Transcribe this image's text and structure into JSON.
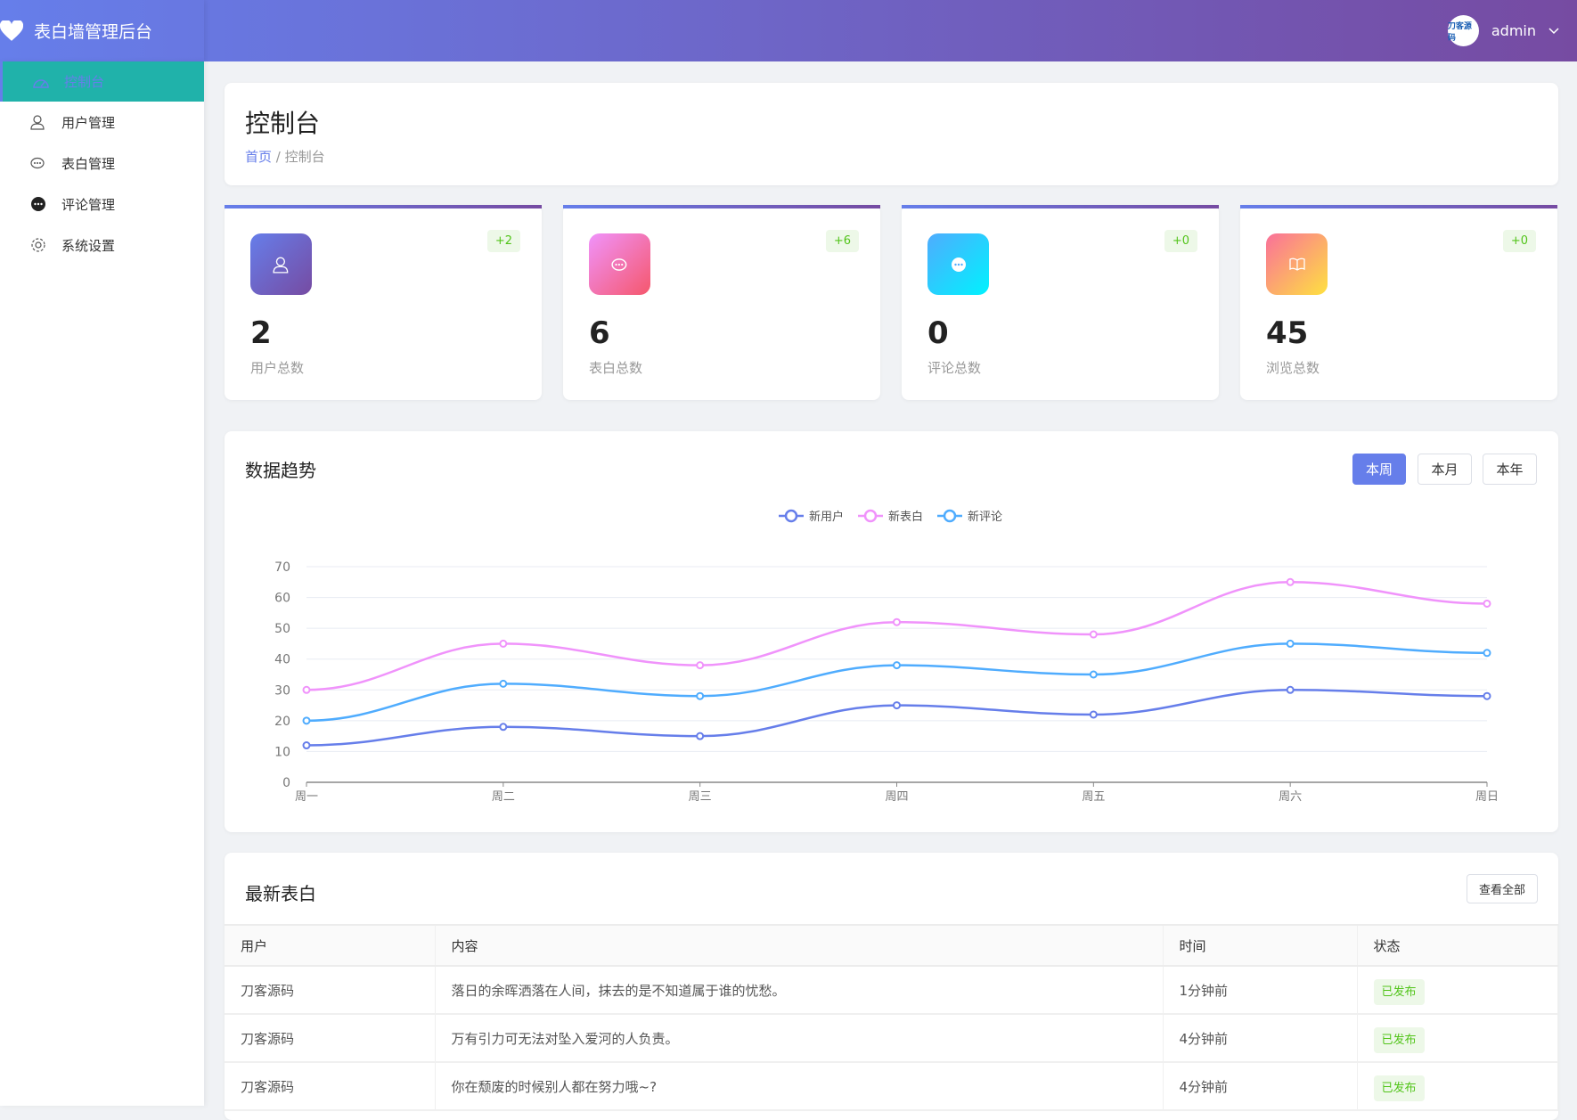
{
  "header": {
    "app_title": "表白墙管理后台",
    "username": "admin",
    "avatar_text": "刀客源码"
  },
  "sidebar": {
    "items": [
      {
        "label": "控制台",
        "icon": "dashboard-icon",
        "active": true
      },
      {
        "label": "用户管理",
        "icon": "user-icon"
      },
      {
        "label": "表白管理",
        "icon": "chat-bubbles-icon"
      },
      {
        "label": "评论管理",
        "icon": "comment-icon"
      },
      {
        "label": "系统设置",
        "icon": "gear-icon"
      }
    ]
  },
  "page": {
    "title": "控制台",
    "breadcrumb_home": "首页",
    "breadcrumb_sep": "/",
    "breadcrumb_current": "控制台"
  },
  "stats": [
    {
      "value": "2",
      "label": "用户总数",
      "delta": "+2",
      "icon": "user-icon"
    },
    {
      "value": "6",
      "label": "表白总数",
      "delta": "+6",
      "icon": "chat-bubbles-icon"
    },
    {
      "value": "0",
      "label": "评论总数",
      "delta": "+0",
      "icon": "comment-icon"
    },
    {
      "value": "45",
      "label": "浏览总数",
      "delta": "+0",
      "icon": "book-icon"
    }
  ],
  "trend": {
    "title": "数据趋势",
    "buttons": [
      "本周",
      "本月",
      "本年"
    ],
    "active_button": "本周"
  },
  "chart_data": {
    "type": "line",
    "smooth": true,
    "categories": [
      "周一",
      "周二",
      "周三",
      "周四",
      "周五",
      "周六",
      "周日"
    ],
    "ylim": [
      0,
      70
    ],
    "yticks": [
      0,
      10,
      20,
      30,
      40,
      50,
      60,
      70
    ],
    "grid": true,
    "legend": "top-center",
    "series": [
      {
        "name": "新用户",
        "color": "#667eea",
        "values": [
          12,
          18,
          15,
          25,
          22,
          30,
          28
        ]
      },
      {
        "name": "新表白",
        "color": "#f093fb",
        "values": [
          30,
          45,
          38,
          52,
          48,
          65,
          58
        ]
      },
      {
        "name": "新评论",
        "color": "#4facfe",
        "values": [
          20,
          32,
          28,
          38,
          35,
          45,
          42
        ]
      }
    ]
  },
  "latest": {
    "title": "最新表白",
    "view_all": "查看全部",
    "columns": [
      "用户",
      "内容",
      "时间",
      "状态"
    ],
    "rows": [
      {
        "user": "刀客源码",
        "content": "落日的余晖洒落在人间，抹去的是不知道属于谁的忧愁。",
        "time": "1分钟前",
        "status": "已发布"
      },
      {
        "user": "刀客源码",
        "content": "万有引力可无法对坠入爱河的人负责。",
        "time": "4分钟前",
        "status": "已发布"
      },
      {
        "user": "刀客源码",
        "content": "你在颓废的时候别人都在努力哦~?",
        "time": "4分钟前",
        "status": "已发布"
      }
    ]
  }
}
